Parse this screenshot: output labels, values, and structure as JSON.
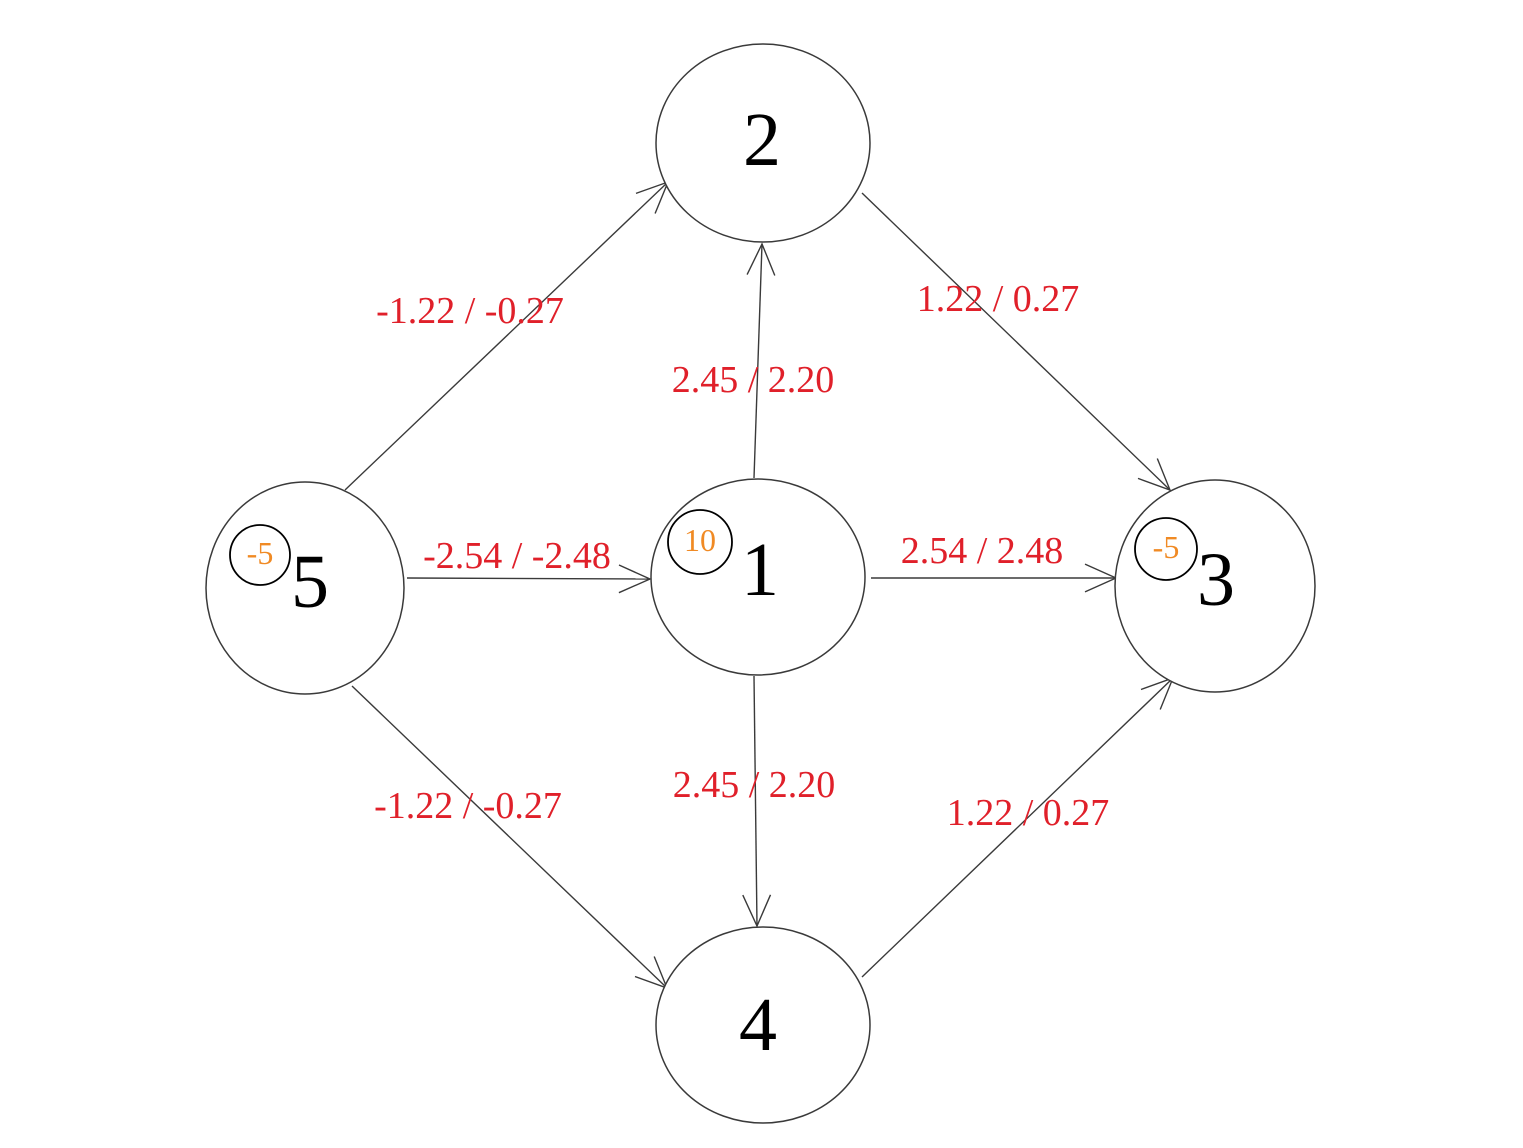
{
  "diagram": {
    "colors": {
      "edge_label": "#e0202a",
      "supply_label": "#f08a24",
      "node_stroke": "#3a3a3a",
      "edge_stroke": "#3a3a3a"
    },
    "nodes": [
      {
        "id": "1",
        "label": "1",
        "supply": "10"
      },
      {
        "id": "2",
        "label": "2",
        "supply": ""
      },
      {
        "id": "3",
        "label": "3",
        "supply": "-5"
      },
      {
        "id": "4",
        "label": "4",
        "supply": ""
      },
      {
        "id": "5",
        "label": "5",
        "supply": "-5"
      }
    ],
    "edges": [
      {
        "from": "5",
        "to": "2",
        "label": "-1.22 / -0.27"
      },
      {
        "from": "2",
        "to": "3",
        "label": "1.22 / 0.27"
      },
      {
        "from": "1",
        "to": "2",
        "label": "2.45 / 2.20"
      },
      {
        "from": "5",
        "to": "1",
        "label": "-2.54 / -2.48"
      },
      {
        "from": "1",
        "to": "3",
        "label": "2.54 / 2.48"
      },
      {
        "from": "1",
        "to": "4",
        "label": "2.45 / 2.20"
      },
      {
        "from": "5",
        "to": "4",
        "label": "-1.22 / -0.27"
      },
      {
        "from": "4",
        "to": "3",
        "label": "1.22 / 0.27"
      }
    ]
  }
}
